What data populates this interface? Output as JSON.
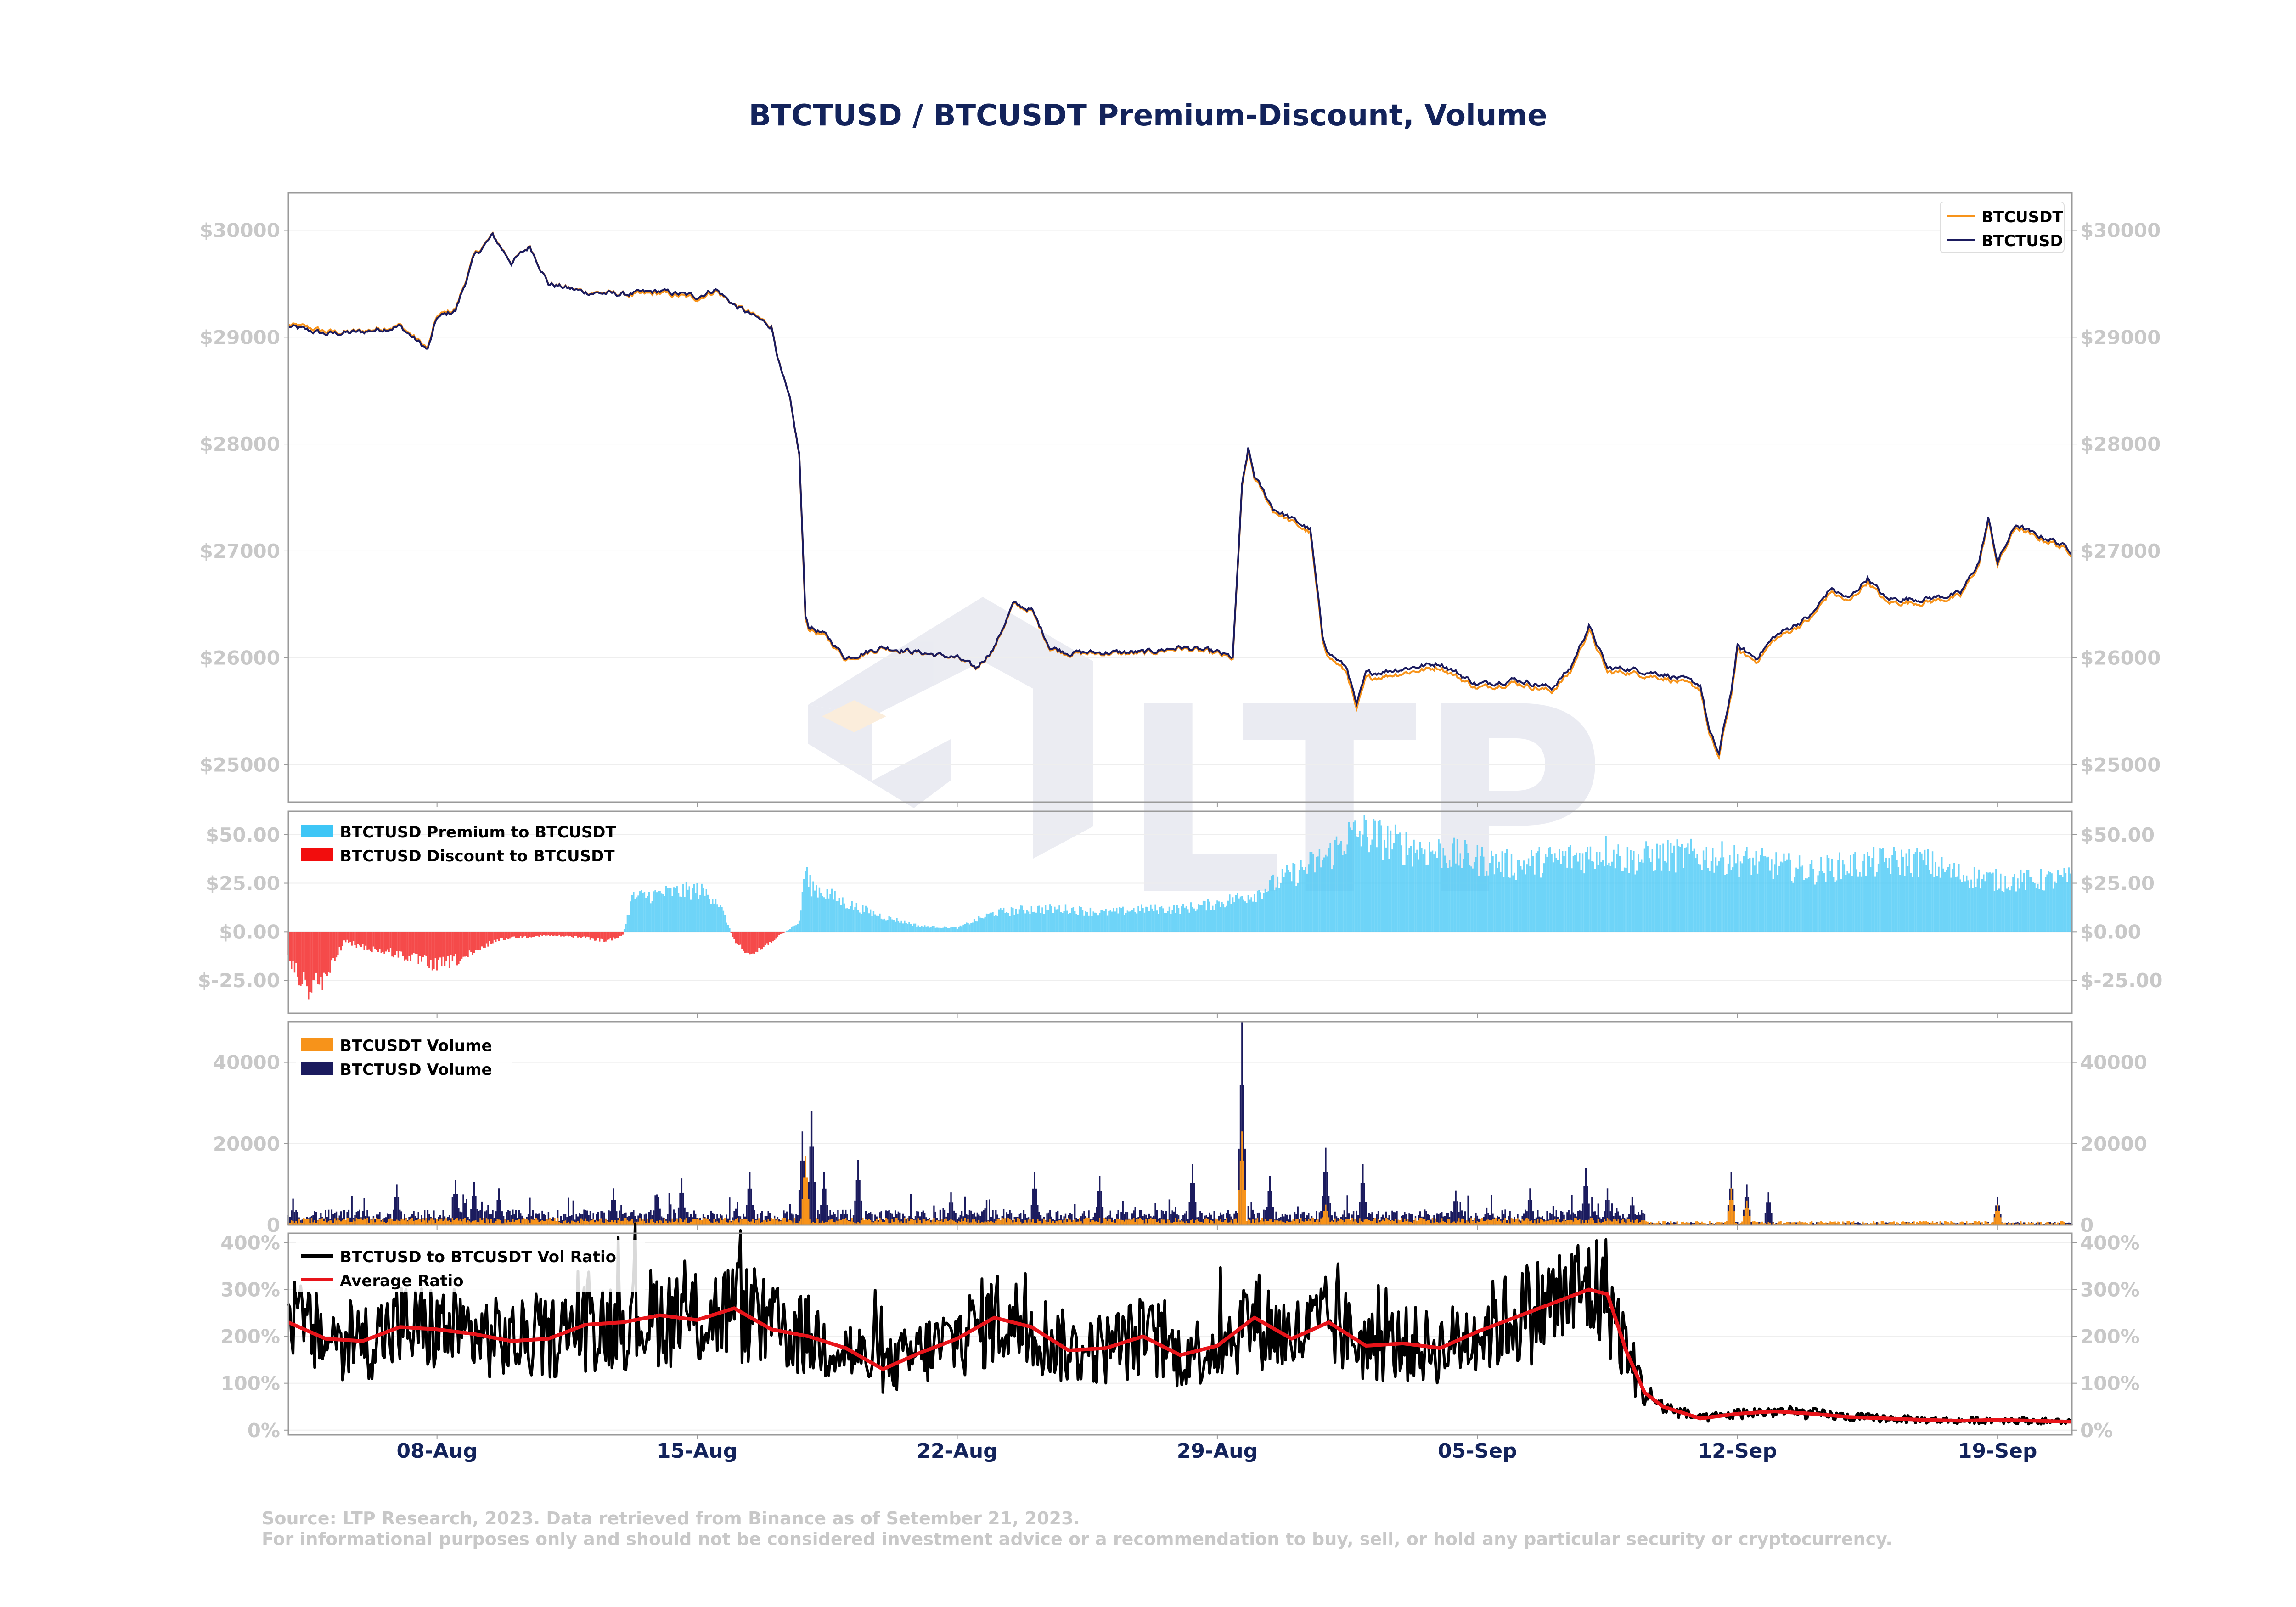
{
  "title": "BTCTUSD / BTCUSDT Premium-Discount, Volume",
  "footer": {
    "source": "Source: LTP Research, 2023. Data retrieved from Binance as of Setember 21, 2023.",
    "disclaimer": "For informational purposes only and should not be considered investment advice or a recommendation to buy, sell, or hold any particular security or cryptocurrency."
  },
  "colors": {
    "btcusdt": "#f7931a",
    "btctusd": "#1b1b5e",
    "premium": "#3ec6f6",
    "discount": "#f20d0d",
    "vol_ratio": "#000000",
    "avg_ratio": "#e8141a",
    "axis_text": "#c8c8c8",
    "date_text": "#13235b"
  },
  "watermark": "LTP",
  "chart_data": [
    {
      "type": "line",
      "panel": "price",
      "x_range": [
        "2023-08-04",
        "2023-09-21"
      ],
      "ylim": [
        24650,
        30350
      ],
      "y_ticks": [
        25000,
        26000,
        27000,
        28000,
        29000,
        30000
      ],
      "y_tick_labels": [
        "$25000",
        "$26000",
        "$27000",
        "$28000",
        "$29000",
        "$30000"
      ],
      "legend": "top-right",
      "series": [
        {
          "name": "BTCUSDT",
          "color": "#f7931a"
        },
        {
          "name": "BTCTUSD",
          "color": "#1b1b5e"
        }
      ],
      "anchors": [
        [
          "2023-08-04",
          29100
        ],
        [
          "2023-08-05",
          29030
        ],
        [
          "2023-08-06",
          29050
        ],
        [
          "2023-08-07",
          29100
        ],
        [
          "2023-08-07 18:00",
          28880
        ],
        [
          "2023-08-08",
          29180
        ],
        [
          "2023-08-08 12:00",
          29250
        ],
        [
          "2023-08-09",
          29750
        ],
        [
          "2023-08-09 12:00",
          29950
        ],
        [
          "2023-08-10",
          29700
        ],
        [
          "2023-08-10 12:00",
          29850
        ],
        [
          "2023-08-11",
          29500
        ],
        [
          "2023-08-12",
          29420
        ],
        [
          "2023-08-13",
          29400
        ],
        [
          "2023-08-14",
          29430
        ],
        [
          "2023-08-15",
          29380
        ],
        [
          "2023-08-15 12:00",
          29450
        ],
        [
          "2023-08-16",
          29300
        ],
        [
          "2023-08-17",
          29100
        ],
        [
          "2023-08-17 06:00",
          28700
        ],
        [
          "2023-08-17 12:00",
          28400
        ],
        [
          "2023-08-17 18:00",
          27900
        ],
        [
          "2023-08-17 22:00",
          26400
        ],
        [
          "2023-08-18",
          26300
        ],
        [
          "2023-08-18 12:00",
          26200
        ],
        [
          "2023-08-19",
          26000
        ],
        [
          "2023-08-20",
          26100
        ],
        [
          "2023-08-21",
          26050
        ],
        [
          "2023-08-22",
          26000
        ],
        [
          "2023-08-22 12:00",
          25900
        ],
        [
          "2023-08-23",
          26100
        ],
        [
          "2023-08-23 12:00",
          26500
        ],
        [
          "2023-08-24",
          26450
        ],
        [
          "2023-08-24 12:00",
          26100
        ],
        [
          "2023-08-25",
          26050
        ],
        [
          "2023-08-26",
          26050
        ],
        [
          "2023-08-27",
          26050
        ],
        [
          "2023-08-28",
          26100
        ],
        [
          "2023-08-29",
          26050
        ],
        [
          "2023-08-29 10:00",
          26000
        ],
        [
          "2023-08-29 16:00",
          27600
        ],
        [
          "2023-08-29 20:00",
          27950
        ],
        [
          "2023-08-30",
          27700
        ],
        [
          "2023-08-30 12:00",
          27400
        ],
        [
          "2023-08-31",
          27300
        ],
        [
          "2023-08-31 12:00",
          27200
        ],
        [
          "2023-08-31 20:00",
          26200
        ],
        [
          "2023-09-01",
          26050
        ],
        [
          "2023-09-01 12:00",
          25900
        ],
        [
          "2023-09-01 18:00",
          25550
        ],
        [
          "2023-09-02",
          25850
        ],
        [
          "2023-09-03",
          25900
        ],
        [
          "2023-09-04",
          25950
        ],
        [
          "2023-09-05",
          25750
        ],
        [
          "2023-09-06",
          25800
        ],
        [
          "2023-09-07",
          25720
        ],
        [
          "2023-09-07 12:00",
          25900
        ],
        [
          "2023-09-08",
          26300
        ],
        [
          "2023-09-08 12:00",
          25900
        ],
        [
          "2023-09-09",
          25900
        ],
        [
          "2023-09-10",
          25850
        ],
        [
          "2023-09-11",
          25750
        ],
        [
          "2023-09-11 06:00",
          25300
        ],
        [
          "2023-09-11 12:00",
          25100
        ],
        [
          "2023-09-11 20:00",
          25700
        ],
        [
          "2023-09-12",
          26100
        ],
        [
          "2023-09-12 12:00",
          26000
        ],
        [
          "2023-09-13",
          26200
        ],
        [
          "2023-09-14",
          26400
        ],
        [
          "2023-09-14 12:00",
          26650
        ],
        [
          "2023-09-15",
          26550
        ],
        [
          "2023-09-15 12:00",
          26750
        ],
        [
          "2023-09-16",
          26550
        ],
        [
          "2023-09-17",
          26550
        ],
        [
          "2023-09-18",
          26600
        ],
        [
          "2023-09-18 12:00",
          26900
        ],
        [
          "2023-09-18 18:00",
          27300
        ],
        [
          "2023-09-19",
          26900
        ],
        [
          "2023-09-19 12:00",
          27250
        ],
        [
          "2023-09-20",
          27150
        ],
        [
          "2023-09-20 12:00",
          27100
        ],
        [
          "2023-09-21",
          27000
        ]
      ]
    },
    {
      "type": "bar",
      "panel": "premium-discount",
      "x_range": [
        "2023-08-04",
        "2023-09-21"
      ],
      "ylim": [
        -42,
        62
      ],
      "y_ticks": [
        -25,
        0,
        25,
        50
      ],
      "y_tick_labels": [
        "$-25.00",
        "$0.00",
        "$25.00",
        "$50.00"
      ],
      "legend": "top-left",
      "series": [
        {
          "name": "BTCTUSD Premium to BTCUSDT",
          "color": "#3ec6f6"
        },
        {
          "name": "BTCTUSD Discount to BTCUSDT",
          "color": "#f20d0d"
        }
      ],
      "anchors": [
        [
          "2023-08-04",
          -15
        ],
        [
          "2023-08-04 12:00",
          -30
        ],
        [
          "2023-08-05",
          -25
        ],
        [
          "2023-08-05 12:00",
          -5
        ],
        [
          "2023-08-06",
          -8
        ],
        [
          "2023-08-07",
          -12
        ],
        [
          "2023-08-07 12:00",
          -15
        ],
        [
          "2023-08-08",
          -18
        ],
        [
          "2023-08-09",
          -12
        ],
        [
          "2023-08-09 12:00",
          -5
        ],
        [
          "2023-08-10",
          -3
        ],
        [
          "2023-08-11",
          -2
        ],
        [
          "2023-08-12",
          -3
        ],
        [
          "2023-08-12 12:00",
          -5
        ],
        [
          "2023-08-13",
          -2
        ],
        [
          "2023-08-13 06:00",
          18
        ],
        [
          "2023-08-14",
          20
        ],
        [
          "2023-08-15",
          22
        ],
        [
          "2023-08-15 12:00",
          18
        ],
        [
          "2023-08-15 18:00",
          8
        ],
        [
          "2023-08-16",
          -5
        ],
        [
          "2023-08-16 12:00",
          -12
        ],
        [
          "2023-08-17",
          -5
        ],
        [
          "2023-08-17 18:00",
          5
        ],
        [
          "2023-08-17 22:00",
          35
        ],
        [
          "2023-08-18",
          25
        ],
        [
          "2023-08-19",
          15
        ],
        [
          "2023-08-20",
          8
        ],
        [
          "2023-08-21",
          3
        ],
        [
          "2023-08-22",
          2
        ],
        [
          "2023-08-23",
          10
        ],
        [
          "2023-08-24",
          12
        ],
        [
          "2023-08-25",
          12
        ],
        [
          "2023-08-26",
          10
        ],
        [
          "2023-08-27",
          12
        ],
        [
          "2023-08-28",
          12
        ],
        [
          "2023-08-29",
          15
        ],
        [
          "2023-08-30",
          20
        ],
        [
          "2023-08-31",
          30
        ],
        [
          "2023-09-01",
          40
        ],
        [
          "2023-09-01 12:00",
          50
        ],
        [
          "2023-09-02",
          52
        ],
        [
          "2023-09-03",
          45
        ],
        [
          "2023-09-04",
          42
        ],
        [
          "2023-09-05",
          38
        ],
        [
          "2023-09-06",
          35
        ],
        [
          "2023-09-07",
          38
        ],
        [
          "2023-09-08",
          40
        ],
        [
          "2023-09-08 12:00",
          43
        ],
        [
          "2023-09-09",
          38
        ],
        [
          "2023-09-10",
          40
        ],
        [
          "2023-09-11",
          40
        ],
        [
          "2023-09-12",
          38
        ],
        [
          "2023-09-13",
          35
        ],
        [
          "2023-09-14",
          32
        ],
        [
          "2023-09-15",
          35
        ],
        [
          "2023-09-16",
          37
        ],
        [
          "2023-09-17",
          37
        ],
        [
          "2023-09-17 12:00",
          33
        ],
        [
          "2023-09-18",
          30
        ],
        [
          "2023-09-19",
          27
        ],
        [
          "2023-09-20",
          27
        ],
        [
          "2023-09-21",
          28
        ]
      ]
    },
    {
      "type": "bar",
      "panel": "volume",
      "x_range": [
        "2023-08-04",
        "2023-09-21"
      ],
      "ylim": [
        0,
        50000
      ],
      "y_ticks": [
        0,
        20000,
        40000
      ],
      "y_tick_labels": [
        "0",
        "20000",
        "40000"
      ],
      "legend": "top-left",
      "series": [
        {
          "name": "BTCUSDT Volume",
          "color": "#f7931a"
        },
        {
          "name": "BTCTUSD Volume",
          "color": "#1b1b5e"
        }
      ],
      "btctusd_spikes": [
        [
          "2023-08-06 22:00",
          10000
        ],
        [
          "2023-08-08 12:00",
          11000
        ],
        [
          "2023-08-09 00:00",
          10500
        ],
        [
          "2023-08-09 16:00",
          9000
        ],
        [
          "2023-08-12 18:00",
          9000
        ],
        [
          "2023-08-14 14:00",
          11500
        ],
        [
          "2023-08-16 10:00",
          13000
        ],
        [
          "2023-08-17 20:00",
          23000
        ],
        [
          "2023-08-18 02:00",
          28000
        ],
        [
          "2023-08-18 10:00",
          13000
        ],
        [
          "2023-08-19 08:00",
          16000
        ],
        [
          "2023-08-21 20:00",
          8000
        ],
        [
          "2023-08-24 02:00",
          13000
        ],
        [
          "2023-08-25 20:00",
          12000
        ],
        [
          "2023-08-28 08:00",
          15000
        ],
        [
          "2023-08-29 16:00",
          50000
        ],
        [
          "2023-08-30 10:00",
          12000
        ],
        [
          "2023-08-31 22:00",
          19000
        ],
        [
          "2023-09-01 22:00",
          15000
        ],
        [
          "2023-09-04 10:00",
          8500
        ],
        [
          "2023-09-06 10:00",
          9000
        ],
        [
          "2023-09-07 22:00",
          14000
        ],
        [
          "2023-09-08 12:00",
          9000
        ],
        [
          "2023-09-09 04:00",
          7000
        ],
        [
          "2023-09-11 20:00",
          13000
        ],
        [
          "2023-09-12 06:00",
          10000
        ],
        [
          "2023-09-12 20:00",
          8000
        ],
        [
          "2023-09-19 00:00",
          7000
        ]
      ],
      "btcusdt_spikes": [
        [
          "2023-08-17 22:00",
          17000
        ],
        [
          "2023-08-29 16:00",
          23000
        ],
        [
          "2023-08-31 22:00",
          5000
        ],
        [
          "2023-09-11 20:00",
          9000
        ],
        [
          "2023-09-12 06:00",
          6000
        ],
        [
          "2023-09-19 00:00",
          5000
        ]
      ]
    },
    {
      "type": "line",
      "panel": "vol-ratio",
      "x_range": [
        "2023-08-04",
        "2023-09-21"
      ],
      "ylim": [
        -10,
        420
      ],
      "y_ticks": [
        0,
        100,
        200,
        300,
        400
      ],
      "y_tick_labels": [
        "0%",
        "100%",
        "200%",
        "300%",
        "400%"
      ],
      "legend": "top-left",
      "series": [
        {
          "name": "BTCTUSD to BTCUSDT Vol Ratio",
          "color": "#000000"
        },
        {
          "name": "Average Ratio",
          "color": "#e8141a"
        }
      ],
      "avg_ratio_anchors": [
        [
          "2023-08-04",
          230
        ],
        [
          "2023-08-05",
          195
        ],
        [
          "2023-08-06",
          190
        ],
        [
          "2023-08-07",
          220
        ],
        [
          "2023-08-08",
          215
        ],
        [
          "2023-08-09",
          205
        ],
        [
          "2023-08-10",
          190
        ],
        [
          "2023-08-11",
          195
        ],
        [
          "2023-08-12",
          225
        ],
        [
          "2023-08-13",
          230
        ],
        [
          "2023-08-14",
          245
        ],
        [
          "2023-08-15",
          235
        ],
        [
          "2023-08-16",
          260
        ],
        [
          "2023-08-17",
          215
        ],
        [
          "2023-08-18",
          200
        ],
        [
          "2023-08-19",
          175
        ],
        [
          "2023-08-20",
          130
        ],
        [
          "2023-08-21",
          165
        ],
        [
          "2023-08-22",
          195
        ],
        [
          "2023-08-23",
          240
        ],
        [
          "2023-08-24",
          220
        ],
        [
          "2023-08-25",
          170
        ],
        [
          "2023-08-26",
          175
        ],
        [
          "2023-08-27",
          200
        ],
        [
          "2023-08-28",
          160
        ],
        [
          "2023-08-29",
          180
        ],
        [
          "2023-08-30",
          240
        ],
        [
          "2023-08-31",
          195
        ],
        [
          "2023-09-01",
          230
        ],
        [
          "2023-09-02",
          180
        ],
        [
          "2023-09-03",
          185
        ],
        [
          "2023-09-04",
          175
        ],
        [
          "2023-09-05",
          210
        ],
        [
          "2023-09-06",
          240
        ],
        [
          "2023-09-07",
          270
        ],
        [
          "2023-09-08",
          300
        ],
        [
          "2023-09-08 12:00",
          290
        ],
        [
          "2023-09-09",
          170
        ],
        [
          "2023-09-09 12:00",
          80
        ],
        [
          "2023-09-10",
          50
        ],
        [
          "2023-09-11",
          25
        ],
        [
          "2023-09-12",
          35
        ],
        [
          "2023-09-13",
          40
        ],
        [
          "2023-09-14",
          35
        ],
        [
          "2023-09-15",
          28
        ],
        [
          "2023-09-16",
          25
        ],
        [
          "2023-09-17",
          22
        ],
        [
          "2023-09-18",
          20
        ],
        [
          "2023-09-19",
          22
        ],
        [
          "2023-09-20",
          20
        ],
        [
          "2023-09-21",
          18
        ]
      ]
    }
  ],
  "x_axis": {
    "ticks": [
      "2023-08-08",
      "2023-08-15",
      "2023-08-22",
      "2023-08-29",
      "2023-09-05",
      "2023-09-12",
      "2023-09-19"
    ],
    "labels": [
      "08-Aug",
      "15-Aug",
      "22-Aug",
      "29-Aug",
      "05-Sep",
      "12-Sep",
      "19-Sep"
    ]
  }
}
